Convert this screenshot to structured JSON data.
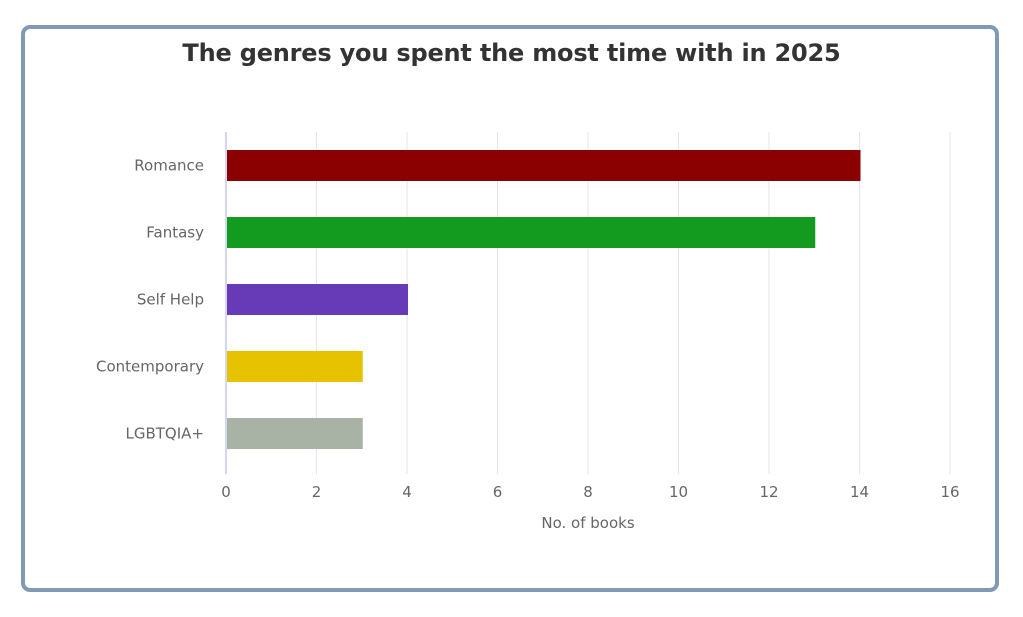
{
  "chart_data": {
    "type": "bar",
    "orientation": "horizontal",
    "title": "The genres you spent the most time with in 2025",
    "xlabel": "No. of books",
    "ylabel": "",
    "categories": [
      "Romance",
      "Fantasy",
      "Self Help",
      "Contemporary",
      "LGBTQIA+"
    ],
    "values": [
      14,
      13,
      4,
      3,
      3
    ],
    "colors": [
      "#8b0000",
      "#129b1e",
      "#673ab7",
      "#e6c200",
      "#a8b2a5"
    ],
    "xlim": [
      0,
      16
    ],
    "xticks": [
      0,
      2,
      4,
      6,
      8,
      10,
      12,
      14,
      16
    ],
    "grid": true,
    "legend": "none"
  },
  "theme": {
    "card_border": "#7f9ab4",
    "grid_color": "#e6e6e6",
    "axis_color": "#c5cae9",
    "label_color": "#666666",
    "title_color": "#333333"
  }
}
